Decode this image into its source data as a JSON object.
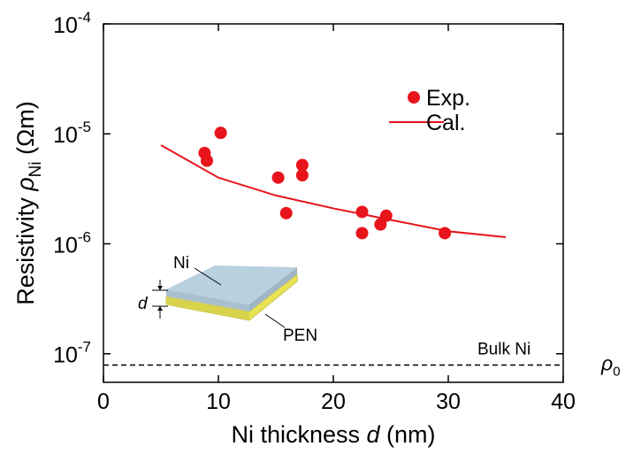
{
  "chart_data": {
    "type": "scatter",
    "x_label": [
      "Ni thickness ",
      "d",
      " (nm)"
    ],
    "y_label": [
      "Resistivity ",
      "ρ",
      "Ni",
      " (Ωm)"
    ],
    "xlim": [
      0,
      40
    ],
    "xticks": [
      0,
      10,
      20,
      30,
      40
    ],
    "ylim": [
      5.5e-08,
      0.0001
    ],
    "log_y": true,
    "yticks": [
      {
        "value": 0.0001,
        "label": "10-4"
      },
      {
        "value": 1e-05,
        "label": "10-5"
      },
      {
        "value": 1e-06,
        "label": "10-6"
      },
      {
        "value": 1e-07,
        "label": "10-7"
      }
    ],
    "series": [
      {
        "name": "Exp.",
        "color": "#e8141b",
        "kind": "points",
        "x": [
          8.8,
          9.0,
          10.2,
          15.2,
          15.9,
          17.3,
          17.3,
          22.5,
          22.5,
          24.1,
          24.6,
          29.7
        ],
        "values": [
          6.7e-06,
          5.7e-06,
          1.02e-05,
          4e-06,
          1.9e-06,
          5.2e-06,
          4.2e-06,
          1.95e-06,
          1.25e-06,
          1.5e-06,
          1.8e-06,
          1.25e-06
        ]
      },
      {
        "name": "Cal.",
        "color": "#e8141b",
        "kind": "line",
        "x": [
          5,
          10,
          15,
          20,
          25,
          30,
          35
        ],
        "values": [
          7.9e-06,
          4e-06,
          2.75e-06,
          2.1e-06,
          1.65e-06,
          1.3e-06,
          1.15e-06
        ]
      }
    ],
    "reference_line": {
      "value": 7.9e-08,
      "label": "Bulk Ni",
      "symbol": [
        "ρ",
        "0"
      ]
    },
    "inset": {
      "top_layer": "Ni",
      "thickness": "d",
      "substrate": "PEN"
    }
  }
}
